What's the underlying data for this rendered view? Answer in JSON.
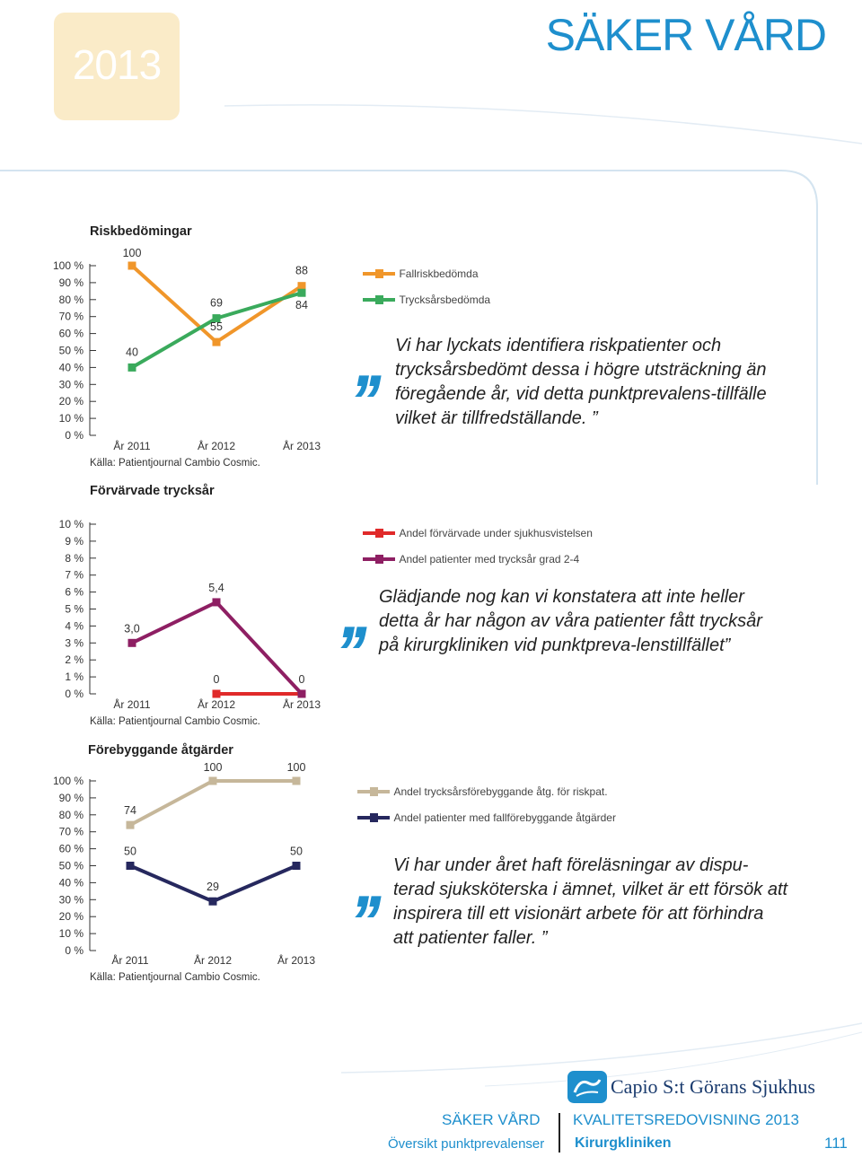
{
  "header": {
    "year": "2013",
    "title": "SÄKER VÅRD"
  },
  "charts": [
    {
      "title": "Riskbedömingar",
      "source": "Källa: Patientjournal Cambio Cosmic.",
      "y_ticks": [
        "100 %",
        "90 %",
        "80 %",
        "70 %",
        "60 %",
        "50 %",
        "40 %",
        "30 %",
        "20 %",
        "10 %",
        "0 %"
      ],
      "x_labels": [
        "År 2011",
        "År 2012",
        "År 2013"
      ],
      "legend": [
        "Fallriskbedömda",
        "Trycksårsbedömda"
      ],
      "point_labels": [
        [
          "100",
          "55",
          "88"
        ],
        [
          "40",
          "69",
          "84"
        ]
      ],
      "quote": "Vi har lyckats identifiera riskpatienter och trycksårsbedömt dessa i  högre utsträckning än föregående år, vid detta punktprevalens-tillfälle vilket är tillfredställande. ”"
    },
    {
      "title": "Förvärvade trycksår",
      "source": "Källa: Patientjournal Cambio Cosmic.",
      "y_ticks": [
        "10 %",
        "9 %",
        "8 %",
        "7 %",
        "6 %",
        "5 %",
        "4 %",
        "3 %",
        "2 %",
        "1 %",
        "0 %"
      ],
      "x_labels": [
        "År 2011",
        "År 2012",
        "År 2013"
      ],
      "legend": [
        "Andel förvärvade under sjukhusvistelsen",
        "Andel patienter med trycksår grad 2-4"
      ],
      "point_labels": [
        [
          "0",
          "0"
        ],
        [
          "3,0",
          "5,4"
        ]
      ],
      "quote": "Glädjande nog kan vi konstatera att inte heller detta år har någon av våra patienter fått trycksår på kirurgkliniken vid punktpreva-lenstillfället”"
    },
    {
      "title": "Förebyggande åtgärder",
      "source": "Källa: Patientjournal Cambio Cosmic.",
      "y_ticks": [
        "100 %",
        "90 %",
        "80 %",
        "70 %",
        "60 %",
        "50 %",
        "40 %",
        "30 %",
        "20 %",
        "10 %",
        "0 %"
      ],
      "x_labels": [
        "År 2011",
        "År 2012",
        "År 2013"
      ],
      "legend": [
        "Andel trycksårsförebyggande åtg. för riskpat.",
        "Andel patienter med fallförebyggande åtgärder"
      ],
      "point_labels": [
        [
          "74",
          "100",
          "100"
        ],
        [
          "50",
          "29",
          "50"
        ]
      ],
      "quote": "Vi har under året haft föreläsningar av dispu-terad sjuksköterska i ämnet, vilket är ett försök att inspirera till ett visionärt arbete för att förhindra att patienter faller. ”"
    }
  ],
  "chart_data": [
    {
      "type": "line",
      "title": "Riskbedömingar",
      "categories": [
        "År 2011",
        "År 2012",
        "År 2013"
      ],
      "ylim": [
        0,
        100
      ],
      "series": [
        {
          "name": "Fallriskbedömda",
          "values": [
            100,
            55,
            88
          ],
          "color": "#f0962a"
        },
        {
          "name": "Trycksårsbedömda",
          "values": [
            40,
            69,
            84
          ],
          "color": "#3aaa5c"
        }
      ]
    },
    {
      "type": "line",
      "title": "Förvärvade trycksår",
      "categories": [
        "År 2011",
        "År 2012",
        "År 2013"
      ],
      "ylim": [
        0,
        10
      ],
      "series": [
        {
          "name": "Andel förvärvade under sjukhusvistelsen",
          "values": [
            null,
            0,
            0
          ],
          "color": "#e02a2a"
        },
        {
          "name": "Andel patienter med trycksår grad 2-4",
          "values": [
            3.0,
            5.4,
            0
          ],
          "color": "#8e1f63"
        }
      ]
    },
    {
      "type": "line",
      "title": "Förebyggande åtgärder",
      "categories": [
        "År 2011",
        "År 2012",
        "År 2013"
      ],
      "ylim": [
        0,
        100
      ],
      "series": [
        {
          "name": "Andel trycksårsförebyggande åtg. för riskpat.",
          "values": [
            74,
            100,
            100
          ],
          "color": "#c6b79a"
        },
        {
          "name": "Andel patienter med fallförebyggande åtgärder",
          "values": [
            50,
            29,
            50
          ],
          "color": "#26285e"
        }
      ]
    }
  ],
  "footer": {
    "saker_vard": "SÄKER VÅRD",
    "oversikt": "Översikt punktprevalenser",
    "kvalitet": "KVALITETSREDOVISNING 2013",
    "klinik": "Kirurgkliniken",
    "page": "111",
    "logo_text": "Capio S:t Görans Sjukhus"
  }
}
